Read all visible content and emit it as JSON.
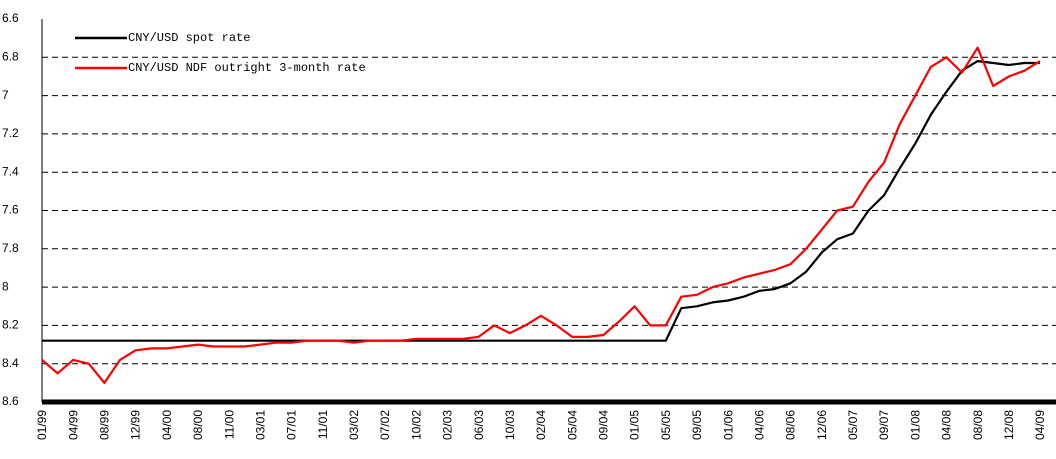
{
  "chart_data": {
    "type": "line",
    "categories": [
      "01/99",
      null,
      "04/99",
      null,
      "08/99",
      null,
      "12/99",
      null,
      "04/00",
      null,
      "08/00",
      null,
      "11/00",
      null,
      "03/01",
      null,
      "07/01",
      null,
      "11/01",
      null,
      "03/02",
      null,
      "07/02",
      null,
      "10/02",
      null,
      "02/03",
      null,
      "06/03",
      null,
      "10/03",
      null,
      "02/04",
      null,
      "05/04",
      null,
      "09/04",
      null,
      "01/05",
      null,
      "05/05",
      null,
      "09/05",
      null,
      "01/06",
      null,
      "04/06",
      null,
      "08/06",
      null,
      "12/06",
      null,
      "05/07",
      null,
      "09/07",
      null,
      "01/08",
      null,
      "04/08",
      null,
      "08/08",
      null,
      "12/08",
      null,
      "04/09"
    ],
    "series": [
      {
        "name": "CNY/USD spot rate",
        "color": "#000000",
        "values": [
          8.28,
          8.28,
          8.28,
          8.28,
          8.28,
          8.28,
          8.28,
          8.28,
          8.28,
          8.28,
          8.28,
          8.28,
          8.28,
          8.28,
          8.28,
          8.28,
          8.28,
          8.28,
          8.28,
          8.28,
          8.28,
          8.28,
          8.28,
          8.28,
          8.28,
          8.28,
          8.28,
          8.28,
          8.28,
          8.28,
          8.28,
          8.28,
          8.28,
          8.28,
          8.28,
          8.28,
          8.28,
          8.28,
          8.28,
          8.28,
          8.28,
          8.11,
          8.1,
          8.08,
          8.07,
          8.05,
          8.02,
          8.01,
          7.98,
          7.92,
          7.82,
          7.75,
          7.72,
          7.6,
          7.52,
          7.38,
          7.25,
          7.1,
          6.98,
          6.87,
          6.82,
          6.83,
          6.84,
          6.83,
          6.83
        ]
      },
      {
        "name": "CNY/USD NDF outright 3-month rate",
        "color": "#ff0000",
        "values": [
          8.38,
          8.45,
          8.38,
          8.4,
          8.5,
          8.38,
          8.33,
          8.32,
          8.32,
          8.31,
          8.3,
          8.31,
          8.31,
          8.31,
          8.3,
          8.29,
          8.29,
          8.28,
          8.28,
          8.28,
          8.29,
          8.28,
          8.28,
          8.28,
          8.27,
          8.27,
          8.27,
          8.27,
          8.26,
          8.2,
          8.24,
          8.2,
          8.15,
          8.2,
          8.26,
          8.26,
          8.25,
          8.18,
          8.1,
          8.2,
          8.2,
          8.05,
          8.04,
          8.0,
          7.98,
          7.95,
          7.93,
          7.91,
          7.88,
          7.8,
          7.7,
          7.6,
          7.58,
          7.45,
          7.35,
          7.15,
          7.0,
          6.85,
          6.8,
          6.88,
          6.75,
          6.95,
          6.9,
          6.87,
          6.82
        ]
      }
    ],
    "ylim": [
      8.6,
      6.6
    ],
    "yticks": [
      6.6,
      6.8,
      7,
      7.2,
      7.4,
      7.6,
      7.8,
      8,
      8.2,
      8.4,
      8.6
    ],
    "grid": true
  }
}
